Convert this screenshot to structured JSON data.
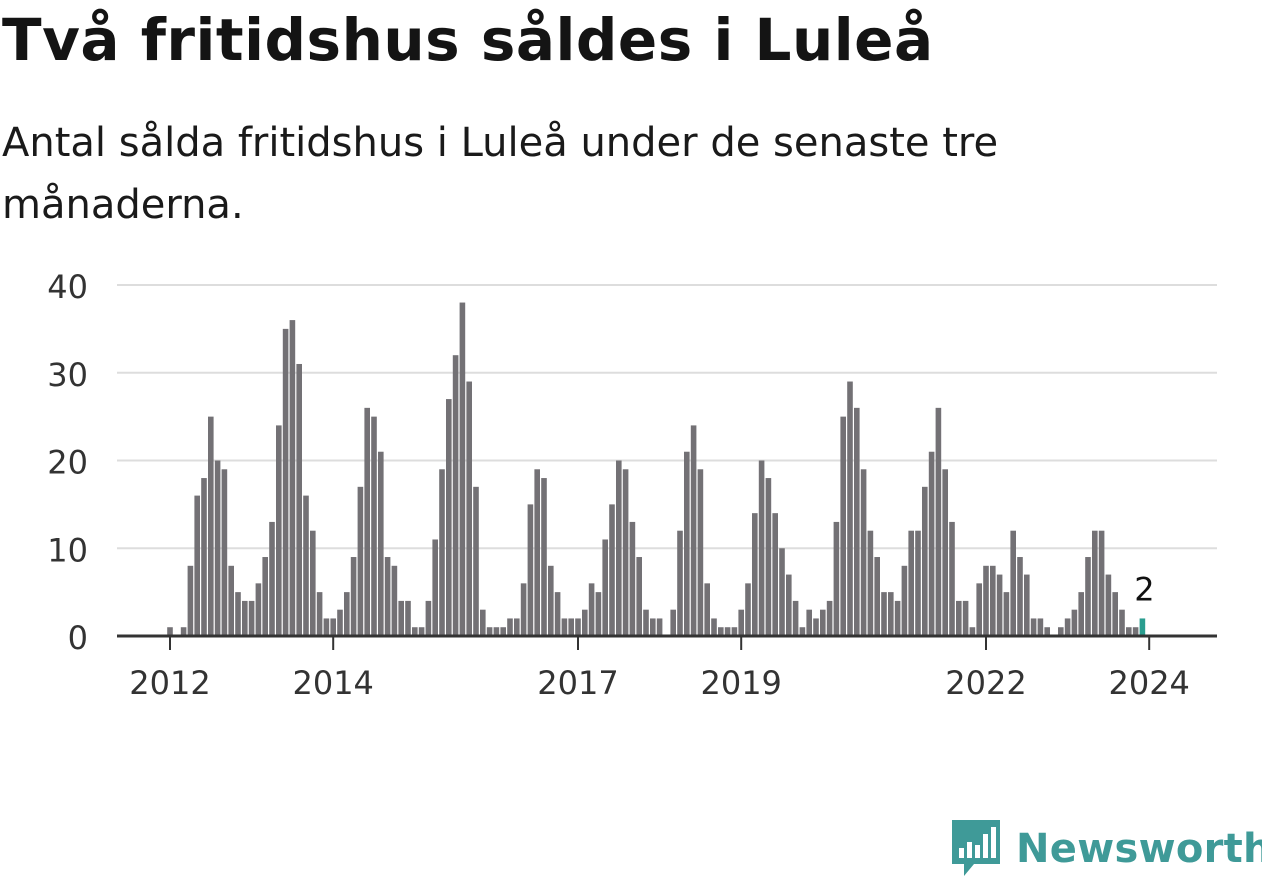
{
  "chart_data": {
    "type": "bar",
    "title": "Två fritidshus såldes i Luleå",
    "subtitle": "Antal sålda fritidshus i Luleå under de senaste tre månaderna.",
    "xlabel": "",
    "ylabel": "",
    "ylim": [
      0,
      40
    ],
    "yticks": [
      0,
      10,
      20,
      30,
      40
    ],
    "xticks": [
      {
        "label": "2012",
        "index": 0
      },
      {
        "label": "2014",
        "index": 24
      },
      {
        "label": "2017",
        "index": 60
      },
      {
        "label": "2019",
        "index": 84
      },
      {
        "label": "2022",
        "index": 120
      },
      {
        "label": "2024",
        "index": 144
      }
    ],
    "start": "2012-01",
    "values": [
      1,
      0,
      1,
      8,
      16,
      18,
      25,
      20,
      19,
      8,
      5,
      4,
      4,
      6,
      9,
      13,
      24,
      35,
      36,
      31,
      16,
      12,
      5,
      2,
      2,
      3,
      5,
      9,
      17,
      26,
      25,
      21,
      9,
      8,
      4,
      4,
      1,
      1,
      4,
      11,
      19,
      27,
      32,
      38,
      29,
      17,
      3,
      1,
      1,
      1,
      2,
      2,
      6,
      15,
      19,
      18,
      8,
      5,
      2,
      2,
      2,
      3,
      6,
      5,
      11,
      15,
      20,
      19,
      13,
      9,
      3,
      2,
      2,
      0,
      3,
      12,
      21,
      24,
      19,
      6,
      2,
      1,
      1,
      1,
      3,
      6,
      14,
      20,
      18,
      14,
      10,
      7,
      4,
      1,
      3,
      2,
      3,
      4,
      13,
      25,
      29,
      26,
      19,
      12,
      9,
      5,
      5,
      4,
      8,
      12,
      12,
      17,
      21,
      26,
      19,
      13,
      4,
      4,
      1,
      6,
      8,
      8,
      7,
      5,
      12,
      9,
      7,
      2,
      2,
      1,
      0,
      1,
      2,
      3,
      5,
      9,
      12,
      12,
      7,
      5,
      3,
      1,
      1,
      2
    ],
    "highlight_index": 143,
    "highlight_label": "2",
    "colors": {
      "bar": "#737175",
      "highlight": "#2a9d8f",
      "grid": "#dddddd",
      "axis": "#333333",
      "tick_text": "#333333"
    }
  },
  "brand": {
    "name": "Newsworthy",
    "color": "#3f9a98"
  }
}
